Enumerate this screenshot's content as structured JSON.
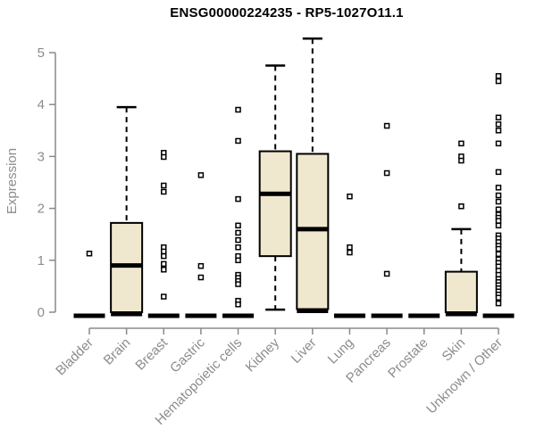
{
  "chart_data": {
    "type": "boxplot",
    "title": "ENSG00000224235 - RP5-1027O11.1",
    "ylabel": "Expression",
    "xlabel": "",
    "ylim": [
      0,
      5.4
    ],
    "yticks": [
      0,
      1,
      2,
      3,
      4,
      5
    ],
    "grid": false,
    "legend": "none",
    "colors": {
      "box_fill": "#EFE8CF",
      "box_stroke": "#000000",
      "axis_line": "#8A8A8A",
      "tick_text": "#8C8C8C",
      "title_text": "#000000",
      "background": "#FFFFFF"
    },
    "categories": [
      "Bladder",
      "Brain",
      "Breast",
      "Gastric",
      "Hematopoietic cells",
      "Kidney",
      "Liver",
      "Lung",
      "Pancreas",
      "Prostate",
      "Skin",
      "Unknown / Other"
    ],
    "boxes": [
      {
        "category": "Bladder",
        "q1": 0,
        "median": 0,
        "q3": 0,
        "whisker_low": 0,
        "whisker_high": 0,
        "outliers": [
          1.13
        ]
      },
      {
        "category": "Brain",
        "q1": 0,
        "median": 0.9,
        "q3": 1.72,
        "whisker_low": 0,
        "whisker_high": 3.95,
        "outliers": []
      },
      {
        "category": "Breast",
        "q1": 0,
        "median": 0,
        "q3": 0,
        "whisker_low": 0,
        "whisker_high": 0,
        "outliers": [
          3.07,
          2.99,
          2.44,
          2.32,
          1.25,
          1.17,
          1.08,
          0.93,
          0.82,
          0.3
        ]
      },
      {
        "category": "Gastric",
        "q1": 0,
        "median": 0,
        "q3": 0,
        "whisker_low": 0,
        "whisker_high": 0,
        "outliers": [
          2.64,
          0.89,
          0.67
        ]
      },
      {
        "category": "Hematopoietic cells",
        "q1": 0,
        "median": 0,
        "q3": 0,
        "whisker_low": 0,
        "whisker_high": 0,
        "outliers": [
          3.9,
          3.3,
          2.18,
          1.67,
          1.53,
          1.39,
          1.25,
          1.08,
          1.0,
          0.72,
          0.66,
          0.6,
          0.54,
          0.22,
          0.15
        ]
      },
      {
        "category": "Kidney",
        "q1": 1.08,
        "median": 2.28,
        "q3": 3.1,
        "whisker_low": 0.05,
        "whisker_high": 4.75,
        "outliers": []
      },
      {
        "category": "Liver",
        "q1": 0.06,
        "median": 1.6,
        "q3": 3.05,
        "whisker_low": 0.06,
        "whisker_high": 5.27,
        "outliers": []
      },
      {
        "category": "Lung",
        "q1": 0,
        "median": 0,
        "q3": 0,
        "whisker_low": 0,
        "whisker_high": 0,
        "outliers": [
          2.23,
          1.25,
          1.15
        ]
      },
      {
        "category": "Pancreas",
        "q1": 0,
        "median": 0,
        "q3": 0,
        "whisker_low": 0,
        "whisker_high": 0,
        "outliers": [
          3.59,
          2.68,
          0.74
        ]
      },
      {
        "category": "Prostate",
        "q1": 0,
        "median": 0,
        "q3": 0,
        "whisker_low": 0,
        "whisker_high": 0,
        "outliers": []
      },
      {
        "category": "Skin",
        "q1": 0,
        "median": 0,
        "q3": 0.78,
        "whisker_low": 0,
        "whisker_high": 1.6,
        "outliers": [
          3.25,
          3.0,
          2.92,
          2.04
        ]
      },
      {
        "category": "Unknown / Other",
        "q1": 0,
        "median": 0,
        "q3": 0,
        "whisker_low": 0,
        "whisker_high": 0,
        "outliers": [
          4.55,
          4.45,
          3.75,
          3.62,
          3.5,
          3.25,
          2.7,
          2.4,
          2.25,
          2.13,
          1.98,
          1.88,
          1.82,
          1.76,
          1.67,
          1.48,
          1.42,
          1.35,
          1.28,
          1.22,
          1.12,
          1.02,
          0.95,
          0.88,
          0.8,
          0.72,
          0.64,
          0.58,
          0.52,
          0.46,
          0.4,
          0.34,
          0.28,
          0.17
        ]
      }
    ]
  }
}
